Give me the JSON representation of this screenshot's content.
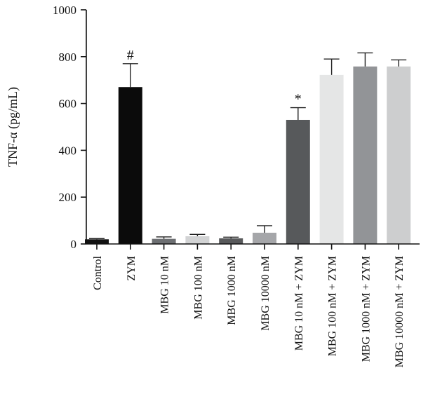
{
  "chart_data": {
    "type": "bar",
    "ylabel": "TNF-α (pg/mL)",
    "xlabel": "",
    "title": "",
    "ylim": [
      0,
      1000
    ],
    "yticks": [
      0,
      200,
      400,
      600,
      800,
      1000
    ],
    "ytick_labels": [
      "0",
      "200",
      "400",
      "600",
      "800",
      "1000"
    ],
    "grid": false,
    "categories": [
      "Control",
      "ZYM",
      "MBG 10 nM",
      "MBG 100 nM",
      "MBG 1000 nM",
      "MBG 10000 nM",
      "MBG 10 nM + ZYM",
      "MBG 100 nM + ZYM",
      "MBG 1000 nM + ZYM",
      "MBG 10000 nM + ZYM"
    ],
    "values": [
      20,
      670,
      22,
      33,
      24,
      48,
      530,
      722,
      758,
      758
    ],
    "errors": [
      3,
      100,
      8,
      8,
      5,
      30,
      52,
      68,
      58,
      28
    ],
    "colors": [
      "#111111",
      "#0b0b0b",
      "#6d6f72",
      "#d2d3d4",
      "#58595b",
      "#a5a6a9",
      "#57595b",
      "#e5e6e6",
      "#929497",
      "#cdcecf"
    ],
    "annotations": [
      {
        "category_index": 1,
        "text": "#"
      },
      {
        "category_index": 6,
        "text": "*"
      }
    ]
  }
}
